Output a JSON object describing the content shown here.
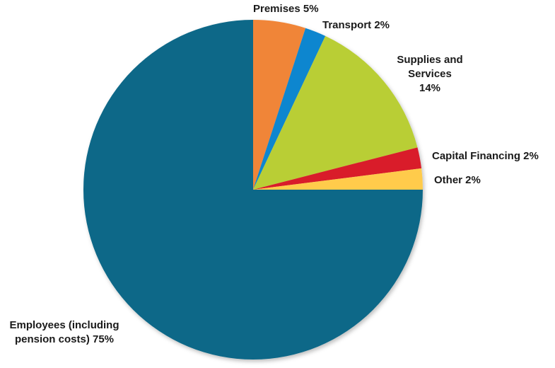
{
  "chart_data": {
    "type": "pie",
    "title": "",
    "start_angle_deg": 90,
    "direction": "clockwise",
    "slices": [
      {
        "label": "Premises",
        "value": 5,
        "color": "#F08538",
        "display": "Premises 5%"
      },
      {
        "label": "Transport",
        "value": 2,
        "color": "#0F86CF",
        "display": "Transport  2%"
      },
      {
        "label": "Supplies and Services",
        "value": 14,
        "color": "#B9CE35",
        "display_lines": [
          "Supplies and",
          "Services",
          "14%"
        ]
      },
      {
        "label": "Capital Financing",
        "value": 2,
        "color": "#D91F2A",
        "display": "Capital Financing 2%"
      },
      {
        "label": "Other",
        "value": 2,
        "color": "#FFCB4C",
        "display": "Other 2%"
      },
      {
        "label": "Employees (including pension costs)",
        "value": 75,
        "color": "#0C6888",
        "display_lines": [
          "Employees (including",
          "pension costs) 75%"
        ]
      }
    ],
    "legend": "none",
    "data_labels": "outside"
  },
  "labels": {
    "premises": "Premises 5%",
    "transport": "Transport  2%",
    "supplies_l1": "Supplies and",
    "supplies_l2": "Services",
    "supplies_l3": "14%",
    "capital": "Capital Financing 2%",
    "other": "Other 2%",
    "employees_l1": "Employees (including",
    "employees_l2": "pension costs) 75%"
  }
}
